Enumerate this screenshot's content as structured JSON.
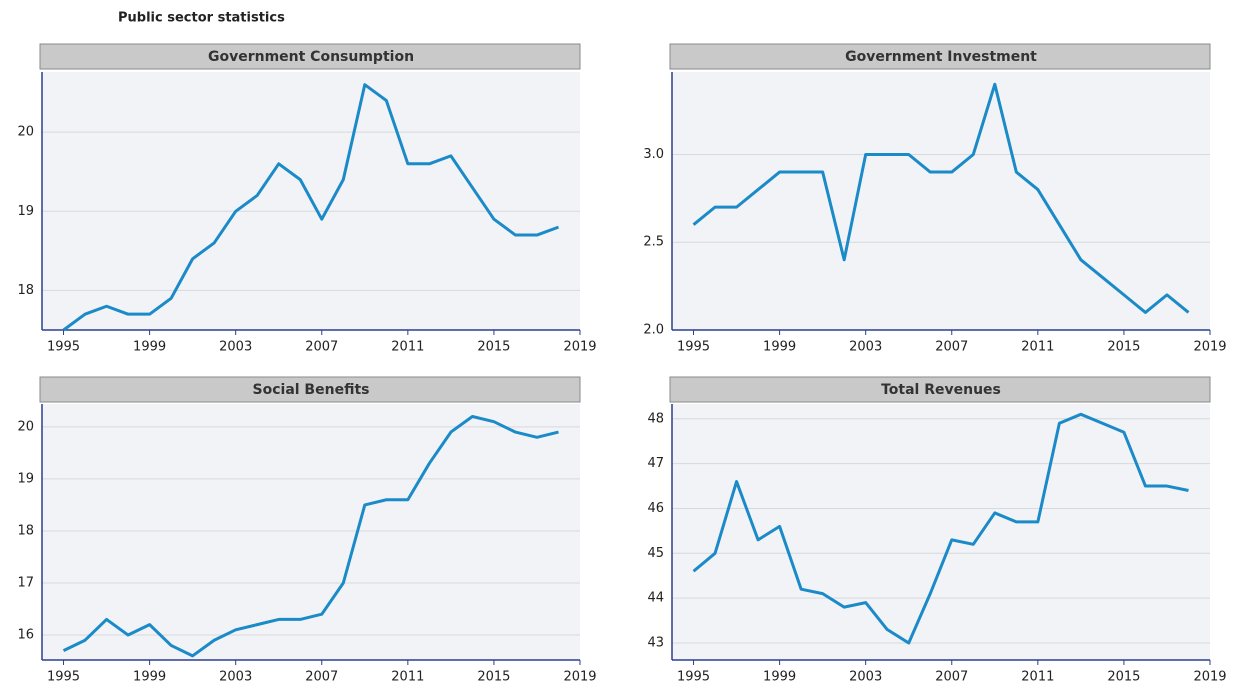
{
  "title": "Public sector statistics",
  "chart_data": [
    {
      "type": "line",
      "title": "Government Consumption",
      "x": [
        1995,
        1996,
        1997,
        1998,
        1999,
        2000,
        2001,
        2002,
        2003,
        2004,
        2005,
        2006,
        2007,
        2008,
        2009,
        2010,
        2011,
        2012,
        2013,
        2014,
        2015,
        2016,
        2017,
        2018
      ],
      "series": [
        {
          "name": "Government Consumption",
          "color": "#1b8ac8",
          "values": [
            17.5,
            17.7,
            17.8,
            17.7,
            17.7,
            17.9,
            18.4,
            18.6,
            19.0,
            19.2,
            19.6,
            19.4,
            18.9,
            19.4,
            20.6,
            20.4,
            19.6,
            19.6,
            19.7,
            19.3,
            18.9,
            18.7,
            18.7,
            18.8
          ]
        }
      ],
      "xlim": [
        1994,
        2019
      ],
      "xticks": [
        1995,
        1999,
        2003,
        2007,
        2011,
        2015,
        2019
      ],
      "ylim": [
        17.5,
        20.76
      ],
      "yticks": [
        18,
        19,
        20
      ],
      "grid": true
    },
    {
      "type": "line",
      "title": "Government Investment",
      "x": [
        1995,
        1996,
        1997,
        1998,
        1999,
        2000,
        2001,
        2002,
        2003,
        2004,
        2005,
        2006,
        2007,
        2008,
        2009,
        2010,
        2011,
        2012,
        2013,
        2014,
        2015,
        2016,
        2017,
        2018
      ],
      "series": [
        {
          "name": "Government Investment",
          "color": "#1b8ac8",
          "values": [
            2.6,
            2.7,
            2.7,
            2.8,
            2.9,
            2.9,
            2.9,
            2.4,
            3.0,
            3.0,
            3.0,
            2.9,
            2.9,
            3.0,
            3.4,
            2.9,
            2.8,
            2.6,
            2.4,
            2.3,
            2.2,
            2.1,
            2.2,
            2.1
          ]
        }
      ],
      "xlim": [
        1994,
        2019
      ],
      "xticks": [
        1995,
        1999,
        2003,
        2007,
        2011,
        2015,
        2019
      ],
      "ylim": [
        2.0,
        3.47
      ],
      "yticks": [
        {
          "value": 2.0,
          "label": "2.0"
        },
        2.5,
        {
          "value": 3.0,
          "label": "3.0"
        }
      ],
      "grid": true
    },
    {
      "type": "line",
      "title": "Social Benefits",
      "x": [
        1995,
        1996,
        1997,
        1998,
        1999,
        2000,
        2001,
        2002,
        2003,
        2004,
        2005,
        2006,
        2007,
        2008,
        2009,
        2010,
        2011,
        2012,
        2013,
        2014,
        2015,
        2016,
        2017,
        2018
      ],
      "series": [
        {
          "name": "Social Benefits",
          "color": "#1b8ac8",
          "values": [
            15.7,
            15.9,
            16.3,
            16.0,
            16.2,
            15.8,
            15.6,
            15.9,
            16.1,
            16.2,
            16.3,
            16.3,
            16.4,
            17.0,
            18.5,
            18.6,
            18.6,
            19.3,
            19.9,
            20.2,
            20.1,
            19.9,
            19.8,
            19.9
          ]
        }
      ],
      "xlim": [
        1994,
        2019
      ],
      "xticks": [
        1995,
        1999,
        2003,
        2007,
        2011,
        2015,
        2019
      ],
      "ylim": [
        15.52,
        20.44
      ],
      "yticks": [
        16,
        17,
        18,
        19,
        20
      ],
      "grid": true
    },
    {
      "type": "line",
      "title": "Total Revenues",
      "x": [
        1995,
        1996,
        1997,
        1998,
        1999,
        2000,
        2001,
        2002,
        2003,
        2004,
        2005,
        2006,
        2007,
        2008,
        2009,
        2010,
        2011,
        2012,
        2013,
        2014,
        2015,
        2016,
        2017,
        2018
      ],
      "series": [
        {
          "name": "Total Revenues",
          "color": "#1b8ac8",
          "values": [
            44.6,
            45.0,
            46.6,
            45.3,
            45.6,
            44.2,
            44.1,
            43.8,
            43.9,
            43.3,
            43.0,
            44.1,
            45.3,
            45.2,
            45.9,
            45.7,
            45.7,
            47.9,
            48.1,
            47.9,
            47.7,
            46.5,
            46.5,
            46.4
          ]
        }
      ],
      "xlim": [
        1994,
        2019
      ],
      "xticks": [
        1995,
        1999,
        2003,
        2007,
        2011,
        2015,
        2019
      ],
      "ylim": [
        42.62,
        48.33
      ],
      "yticks": [
        43,
        44,
        45,
        46,
        47,
        48
      ],
      "grid": true
    }
  ]
}
